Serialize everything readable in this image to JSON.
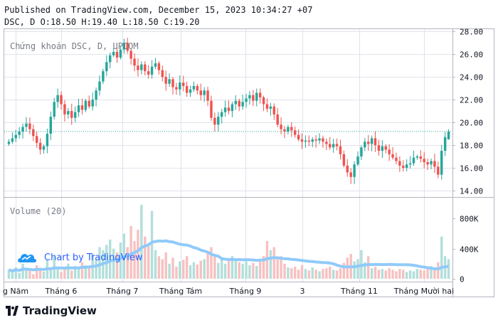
{
  "header": {
    "published": "Published on TradingView.com, December 15, 2023 10:34:27 +07",
    "ohlc": "DSC, D O:18.50 H:19.40 L:18.50 C:19.20"
  },
  "legend": {
    "title": "Chứng khoán DSC, D, UPCOM",
    "volume": "Volume (20)"
  },
  "watermark": {
    "text": "Chart by TradingView",
    "icon": "tradingview-cloud-icon"
  },
  "brand": {
    "text": "TradingView",
    "icon": "tradingview-logo-icon"
  },
  "colors": {
    "up": "#26a69a",
    "down": "#ef5350",
    "up_vol": "#b2dfdb",
    "down_vol": "#f7c1c1",
    "ma": "#90caf9",
    "last": "#26a69a",
    "grid": "#e0e3eb",
    "axis_text": "#131722"
  },
  "chart_data": [
    {
      "type": "candlestick",
      "title": "Chứng khoán DSC, D, UPCOM",
      "ylim": [
        13.5,
        28.2
      ],
      "yticks": [
        14,
        16,
        18,
        20,
        22,
        24,
        26,
        28
      ],
      "ytick_labels": [
        "14.00",
        "16.00",
        "18.00",
        "20.00",
        "22.00",
        "24.00",
        "26.00",
        "28.00"
      ],
      "xtick_labels": [
        "g Năm",
        "Tháng 6",
        "Tháng 7",
        "Tháng Tám",
        "Tháng 9",
        "3",
        "Tháng 11",
        "Tháng Mười hai"
      ],
      "last_price": 19.2,
      "last_ohlc": {
        "open": 18.5,
        "high": 19.4,
        "low": 18.5,
        "close": 19.2
      },
      "close": [
        18.3,
        18.6,
        18.9,
        19.2,
        19.6,
        19.9,
        19.4,
        18.8,
        18.2,
        17.6,
        17.9,
        19.0,
        20.5,
        21.8,
        22.4,
        21.6,
        20.7,
        21.0,
        20.4,
        20.9,
        21.5,
        21.1,
        21.9,
        21.4,
        22.0,
        22.8,
        23.6,
        24.5,
        25.3,
        25.9,
        26.2,
        25.7,
        26.4,
        27.0,
        26.3,
        25.6,
        25.0,
        24.6,
        25.1,
        24.5,
        24.2,
        24.9,
        25.2,
        24.6,
        24.0,
        23.4,
        23.8,
        23.1,
        22.9,
        23.5,
        23.2,
        22.6,
        22.9,
        23.2,
        22.8,
        22.4,
        22.8,
        21.9,
        20.4,
        19.8,
        20.5,
        20.9,
        21.3,
        21.0,
        21.6,
        21.9,
        21.4,
        21.8,
        22.1,
        22.4,
        21.9,
        22.6,
        22.2,
        21.6,
        21.2,
        21.4,
        20.7,
        19.8,
        19.4,
        19.2,
        19.6,
        19.3,
        18.9,
        18.5,
        18.3,
        18.4,
        18.3,
        18.5,
        18.4,
        18.6,
        18.3,
        18.1,
        17.8,
        18.1,
        17.9,
        17.2,
        16.2,
        15.6,
        15.2,
        16.3,
        17.0,
        17.8,
        18.3,
        18.1,
        18.6,
        18.0,
        17.5,
        17.9,
        17.6,
        17.2,
        16.9,
        16.6,
        16.2,
        16.0,
        16.3,
        16.4,
        16.9,
        17.0,
        16.8,
        16.5,
        16.3,
        16.6,
        16.1,
        15.4,
        17.5,
        18.7,
        19.2
      ],
      "volume": [
        120000,
        90000,
        150000,
        80000,
        200000,
        130000,
        110000,
        60000,
        180000,
        140000,
        95000,
        250000,
        120000,
        300000,
        160000,
        90000,
        140000,
        200000,
        110000,
        170000,
        130000,
        220000,
        180000,
        150000,
        330000,
        250000,
        420000,
        380000,
        450000,
        520000,
        400000,
        350000,
        480000,
        600000,
        420000,
        700000,
        500000,
        650000,
        980000,
        560000,
        470000,
        900000,
        380000,
        300000,
        260000,
        350000,
        200000,
        280000,
        160000,
        230000,
        250000,
        300000,
        180000,
        220000,
        190000,
        240000,
        260000,
        350000,
        420000,
        300000,
        210000,
        280000,
        200000,
        240000,
        300000,
        260000,
        220000,
        200000,
        230000,
        180000,
        210000,
        170000,
        260000,
        300000,
        500000,
        380000,
        420000,
        280000,
        300000,
        200000,
        150000,
        140000,
        160000,
        120000,
        180000,
        130000,
        110000,
        150000,
        120000,
        100000,
        130000,
        140000,
        160000,
        120000,
        110000,
        140000,
        210000,
        280000,
        330000,
        230000,
        260000,
        380000,
        220000,
        300000,
        140000,
        160000,
        120000,
        130000,
        110000,
        140000,
        120000,
        100000,
        130000,
        120000,
        90000,
        110000,
        100000,
        130000,
        120000,
        110000,
        140000,
        170000,
        140000,
        220000,
        560000,
        300000,
        260000
      ]
    },
    {
      "type": "bar",
      "title": "Volume (20)",
      "ylim": [
        0,
        1000000
      ],
      "yticks": [
        0,
        400000,
        800000
      ],
      "ytick_labels": [
        "0",
        "400K",
        "800K"
      ]
    }
  ]
}
